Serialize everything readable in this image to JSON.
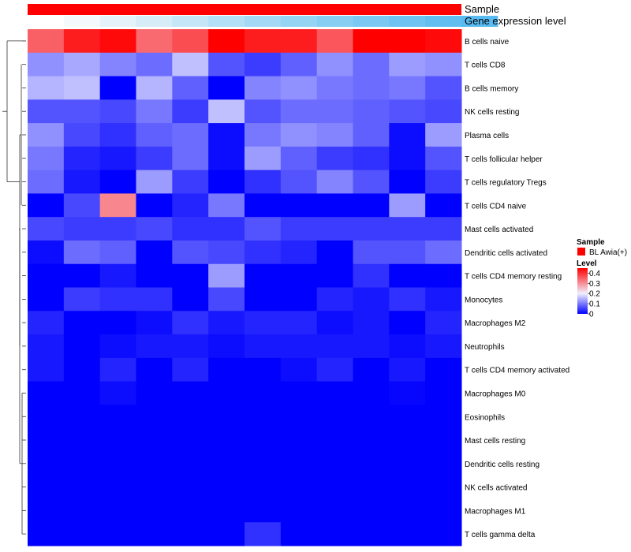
{
  "chart_data": {
    "type": "heatmap",
    "title": "",
    "annotations": {
      "sample_label": "Sample",
      "gene_label": "Gene expression level",
      "sample_color": "#ff0000",
      "gene_colors": [
        "#ffffff",
        "#f4f9fc",
        "#e6f2f9",
        "#d6ecf7",
        "#c4e6f6",
        "#b3e0f6",
        "#a4d9f5",
        "#96d4f4",
        "#88cef3",
        "#7bc9f3",
        "#6ec3f2",
        "#62bef1",
        "#57baf1"
      ]
    },
    "rows": [
      "B cells naive",
      "T cells CD8",
      "B cells memory",
      "NK cells resting",
      "Plasma cells",
      "T cells follicular helper",
      "T cells regulatory  Tregs",
      "T cells CD4 naive",
      "Mast cells activated",
      "Dendritic cells activated",
      "T cells CD4 memory resting",
      "Monocytes",
      "Macrophages M2",
      "Neutrophils",
      "T cells CD4 memory activated",
      "Macrophages M0",
      "Eosinophils",
      "Mast cells resting",
      "Dendritic cells resting",
      "NK cells activated",
      "Macrophages M1",
      "T cells gamma delta"
    ],
    "n_columns": 12,
    "values": [
      [
        0.35,
        0.42,
        0.44,
        0.34,
        0.37,
        0.46,
        0.42,
        0.42,
        0.36,
        0.46,
        0.46,
        0.44
      ],
      [
        0.12,
        0.14,
        0.11,
        0.09,
        0.16,
        0.07,
        0.05,
        0.08,
        0.12,
        0.09,
        0.13,
        0.12
      ],
      [
        0.15,
        0.16,
        0.0,
        0.15,
        0.08,
        0.0,
        0.11,
        0.12,
        0.1,
        0.09,
        0.1,
        0.07
      ],
      [
        0.07,
        0.07,
        0.06,
        0.1,
        0.05,
        0.16,
        0.07,
        0.09,
        0.09,
        0.08,
        0.07,
        0.06
      ],
      [
        0.12,
        0.06,
        0.04,
        0.08,
        0.09,
        0.01,
        0.1,
        0.12,
        0.11,
        0.08,
        0.01,
        0.13
      ],
      [
        0.1,
        0.03,
        0.02,
        0.05,
        0.09,
        0.01,
        0.13,
        0.08,
        0.05,
        0.04,
        0.01,
        0.07
      ],
      [
        0.09,
        0.02,
        0.0,
        0.13,
        0.05,
        0.0,
        0.04,
        0.07,
        0.11,
        0.07,
        0.0,
        0.05
      ],
      [
        0.0,
        0.06,
        0.31,
        0.0,
        0.03,
        0.1,
        0.0,
        0.0,
        0.0,
        0.0,
        0.13,
        0.0
      ],
      [
        0.06,
        0.05,
        0.05,
        0.06,
        0.04,
        0.04,
        0.07,
        0.05,
        0.05,
        0.05,
        0.05,
        0.05
      ],
      [
        0.01,
        0.09,
        0.08,
        0.0,
        0.07,
        0.06,
        0.04,
        0.03,
        0.0,
        0.07,
        0.07,
        0.09
      ],
      [
        0.0,
        0.0,
        0.02,
        0.0,
        0.0,
        0.13,
        0.0,
        0.0,
        0.0,
        0.04,
        0.0,
        0.0
      ],
      [
        0.0,
        0.05,
        0.04,
        0.04,
        0.0,
        0.06,
        0.0,
        0.0,
        0.03,
        0.02,
        0.04,
        0.02
      ],
      [
        0.03,
        0.0,
        0.0,
        0.01,
        0.04,
        0.02,
        0.03,
        0.03,
        0.01,
        0.02,
        0.0,
        0.03
      ],
      [
        0.02,
        0.0,
        0.01,
        0.02,
        0.02,
        0.01,
        0.02,
        0.02,
        0.02,
        0.02,
        0.01,
        0.02
      ],
      [
        0.02,
        0.0,
        0.03,
        0.0,
        0.03,
        0.0,
        0.0,
        0.01,
        0.03,
        0.0,
        0.02,
        0.0
      ],
      [
        0.0,
        0.0,
        0.01,
        0.0,
        0.0,
        0.0,
        0.0,
        0.0,
        0.0,
        0.0,
        0.005,
        0.0
      ],
      [
        0,
        0,
        0,
        0,
        0,
        0,
        0,
        0,
        0,
        0,
        0,
        0
      ],
      [
        0,
        0,
        0,
        0,
        0,
        0,
        0,
        0,
        0,
        0,
        0,
        0
      ],
      [
        0,
        0,
        0,
        0,
        0,
        0,
        0,
        0,
        0,
        0,
        0,
        0
      ],
      [
        0,
        0,
        0,
        0,
        0,
        0,
        0,
        0,
        0,
        0,
        0,
        0
      ],
      [
        0,
        0,
        0,
        0,
        0,
        0,
        0,
        0,
        0,
        0,
        0,
        0
      ],
      [
        0,
        0,
        0,
        0,
        0,
        0,
        0.04,
        0,
        0,
        0,
        0,
        0
      ]
    ],
    "color_scale": {
      "min": 0,
      "max": 0.45,
      "stops": [
        {
          "value": 0,
          "color": "#0000ff"
        },
        {
          "value": 0.2,
          "color": "#f0f0ff"
        },
        {
          "value": 0.45,
          "color": "#ff0000"
        }
      ]
    },
    "legend": {
      "sample_title": "Sample",
      "sample_entry": "BL Awia(+)",
      "level_title": "Level",
      "ticks": [
        "0",
        "0.1",
        "0.2",
        "0.3",
        "0.4"
      ],
      "tick_values": [
        0,
        0.1,
        0.2,
        0.3,
        0.4
      ]
    }
  }
}
